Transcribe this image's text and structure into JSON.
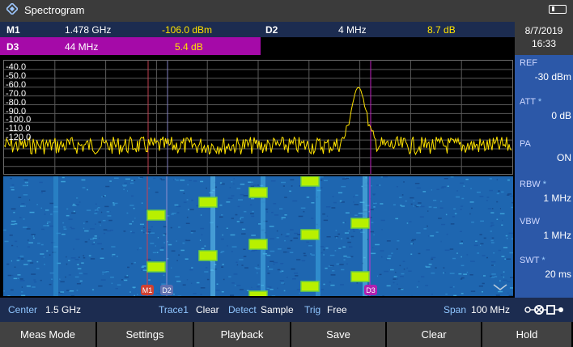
{
  "title": "Spectrogram",
  "markers": {
    "m1": {
      "label": "M1",
      "freq": "1.478 GHz",
      "level": "-106.0 dBm"
    },
    "d2": {
      "label": "D2",
      "freq": "4 MHz",
      "level": "8.7 dB"
    },
    "d3": {
      "label": "D3",
      "freq": "44 MHz",
      "level": "5.4 dB"
    }
  },
  "datetime": {
    "date": "8/7/2019",
    "time": "16:33"
  },
  "trace": {
    "y_labels": [
      "-40.0",
      "-50.0",
      "-60.0",
      "-70.0",
      "-80.0",
      "-90.0",
      "-100.0",
      "-110.0",
      "-120.0"
    ]
  },
  "waterfall_markers": {
    "m1": "M1",
    "d2": "D2",
    "d3": "D3"
  },
  "side_panel": [
    {
      "label": "REF",
      "value": "-30 dBm",
      "star": ""
    },
    {
      "label": "ATT",
      "value": "0 dB",
      "star": "*"
    },
    {
      "label": "PA",
      "value": "ON",
      "star": ""
    },
    {
      "label": "RBW",
      "value": "1 MHz",
      "star": "*"
    },
    {
      "label": "VBW",
      "value": "1 MHz",
      "star": ""
    },
    {
      "label": "SWT",
      "value": "20 ms",
      "star": "*"
    }
  ],
  "status": {
    "center_label": "Center",
    "center_value": "1.5 GHz",
    "trace_label": "Trace1",
    "trace_value": "Clear",
    "detect_label": "Detect",
    "detect_value": "Sample",
    "trig_label": "Trig",
    "trig_value": "Free",
    "span_label": "Span",
    "span_value": "100 MHz"
  },
  "softkeys": [
    "Meas Mode",
    "Settings",
    "Playback",
    "Save",
    "Clear",
    "Hold"
  ],
  "colors": {
    "accent_yellow": "#ffe300",
    "marker_magenta": "#a50aa8",
    "panel_blue": "#2c58a8"
  }
}
